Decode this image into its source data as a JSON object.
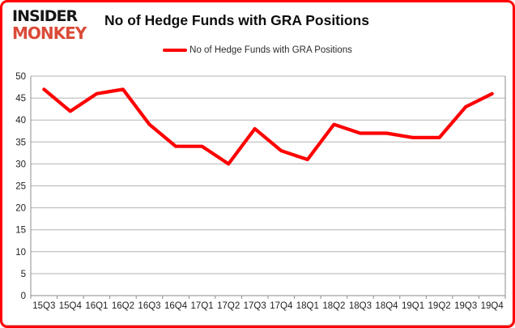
{
  "logo": {
    "line1": "INSIDER",
    "line2": "MONKEY"
  },
  "header": {
    "title": "No of Hedge Funds with GRA Positions"
  },
  "legend": {
    "label": "No of Hedge Funds with GRA Positions"
  },
  "colors": {
    "series": "#fe0000",
    "page_border": "#fe0000",
    "logo_top": "#161616",
    "logo_bottom": "#da4b38",
    "gridline": "#b3b3b3",
    "axis": "#8c8c8c"
  },
  "chart_data": {
    "type": "line",
    "title": "No of Hedge Funds with GRA Positions",
    "categories": [
      "15Q3",
      "15Q4",
      "16Q1",
      "16Q2",
      "16Q3",
      "16Q4",
      "17Q1",
      "17Q2",
      "17Q3",
      "17Q4",
      "18Q1",
      "18Q2",
      "18Q3",
      "18Q4",
      "19Q1",
      "19Q2",
      "19Q3",
      "19Q4"
    ],
    "values": [
      47,
      42,
      46,
      47,
      39,
      34,
      34,
      30,
      38,
      33,
      31,
      39,
      37,
      37,
      36,
      36,
      43,
      46
    ],
    "xlabel": "",
    "ylabel": "",
    "ylim": [
      0,
      50
    ],
    "ytick_step": 5,
    "grid": true,
    "legend_position": "top-center",
    "series_color": "#fe0000"
  }
}
